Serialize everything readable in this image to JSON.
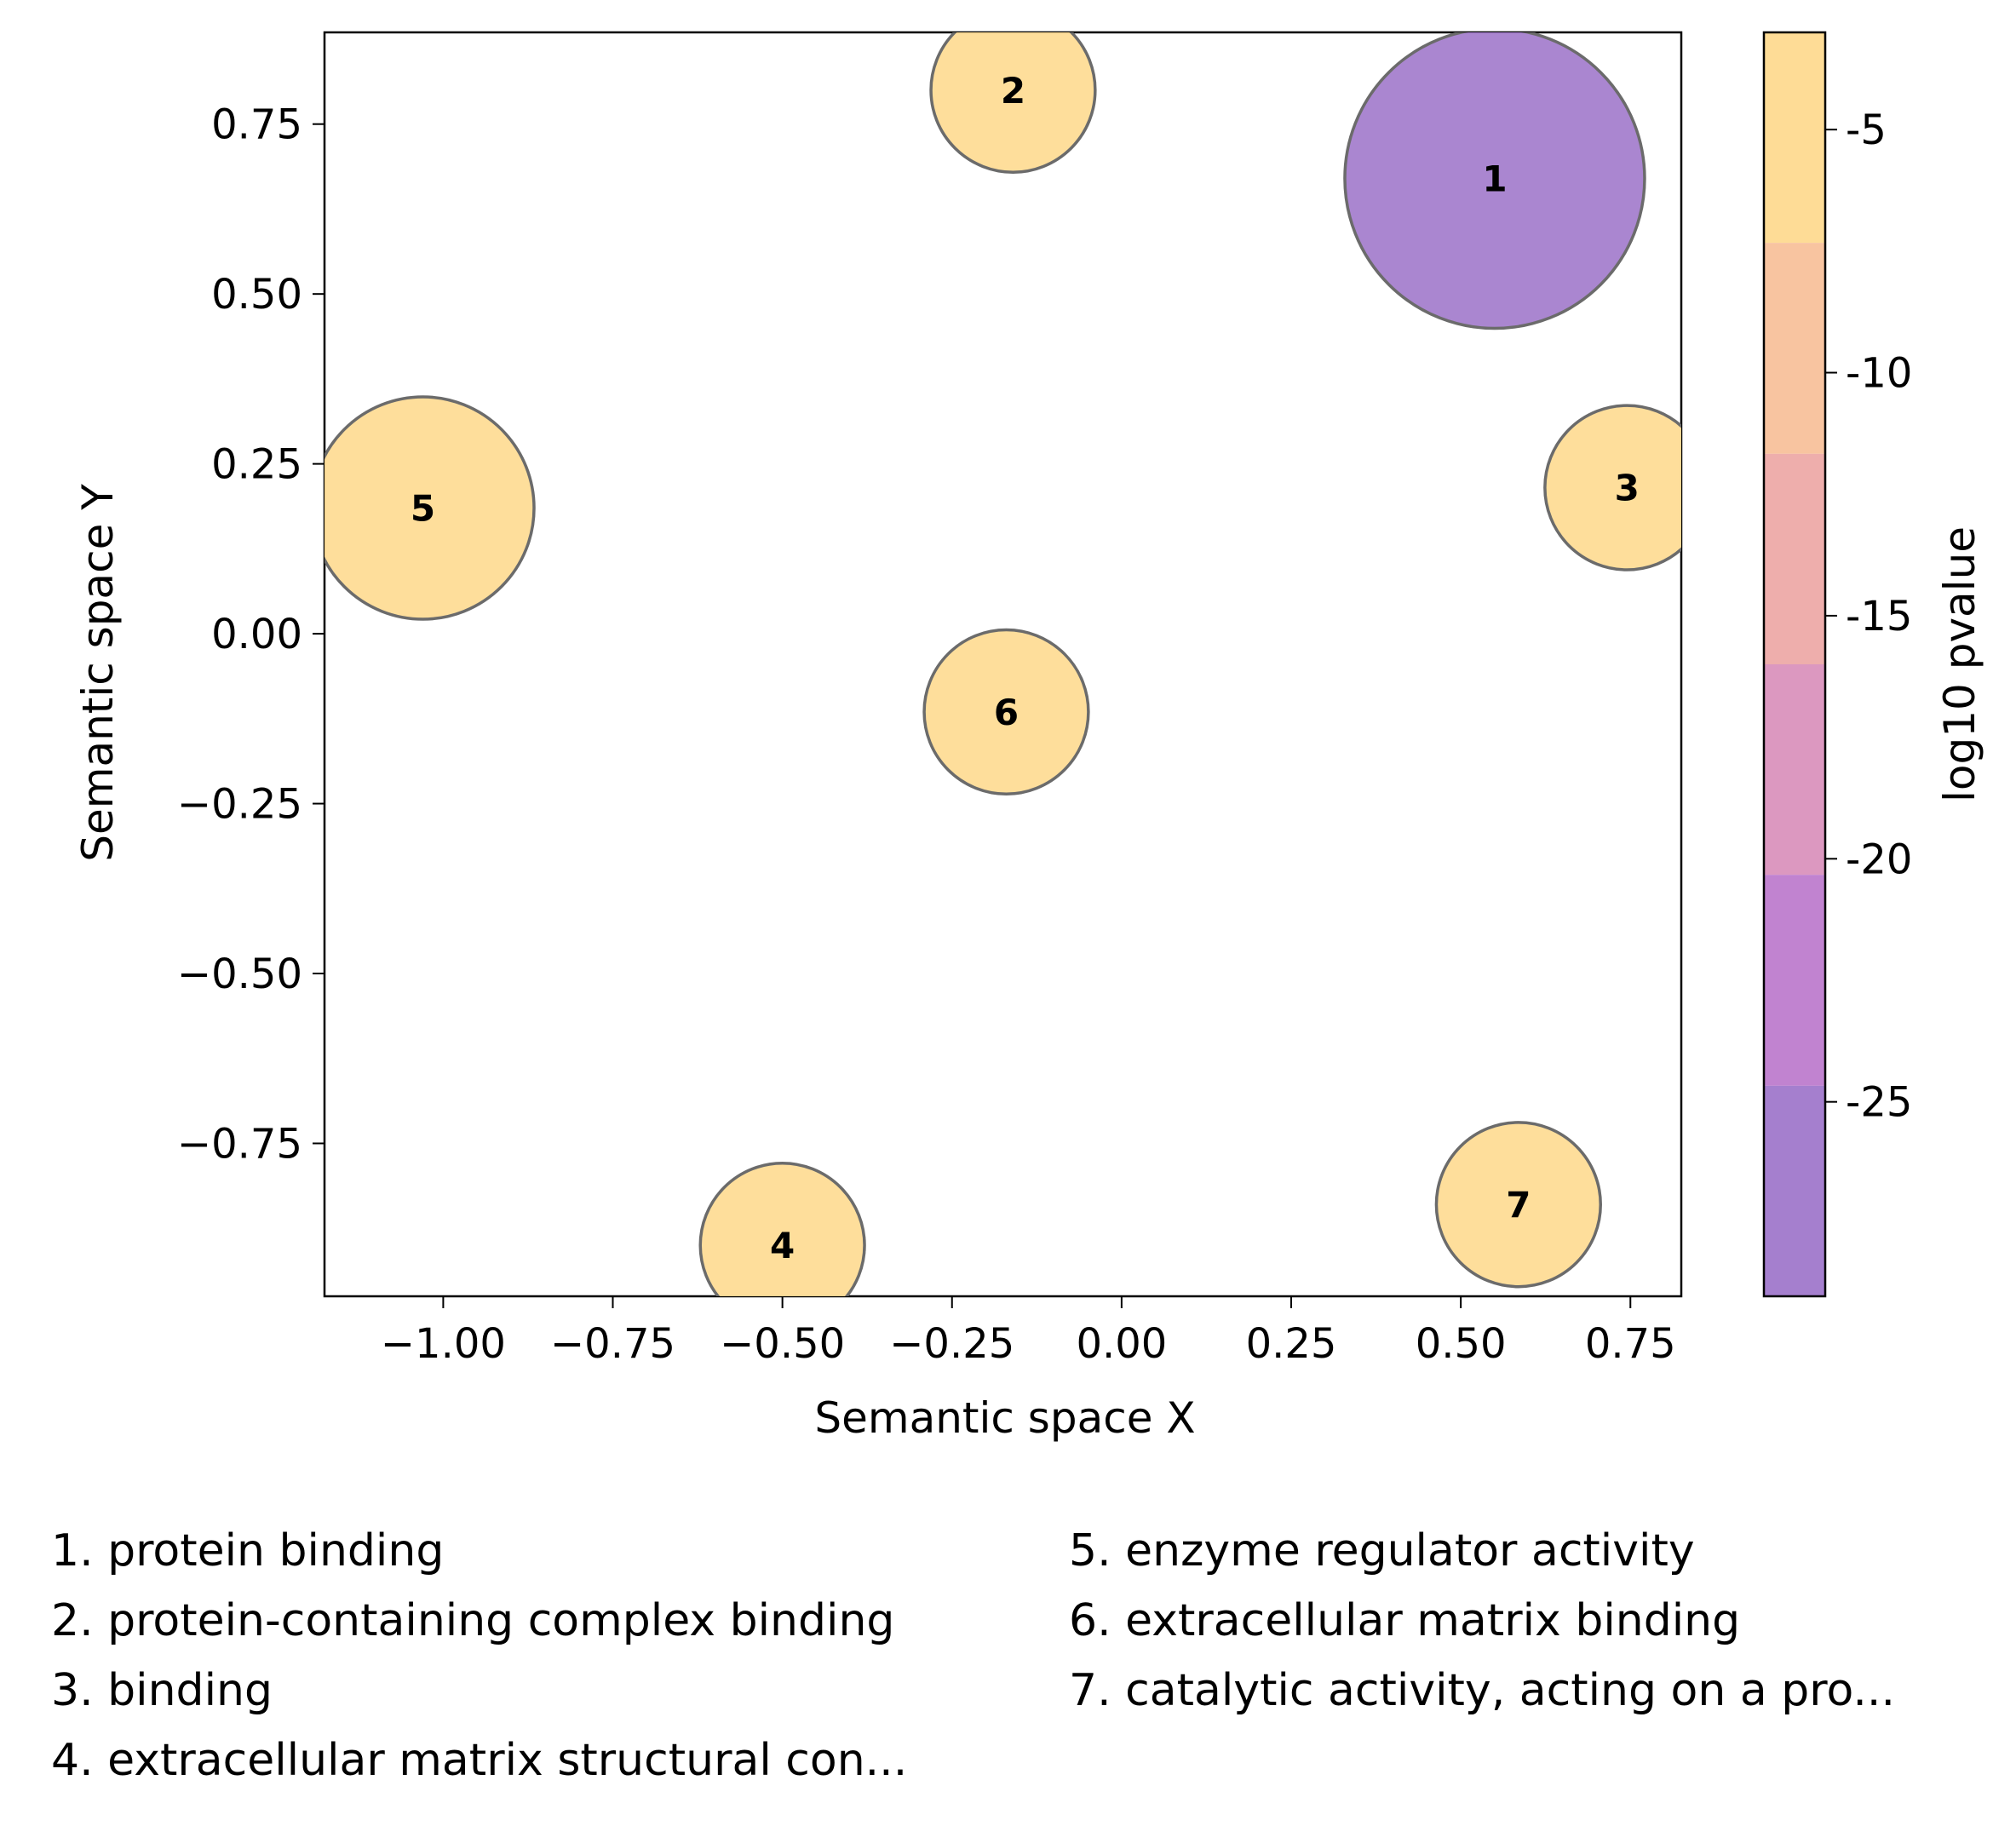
{
  "chart_data": {
    "type": "scatter",
    "title": "",
    "xlabel": "Semantic space X",
    "ylabel": "Semantic space Y",
    "xlim": [
      -1.175,
      0.825
    ],
    "ylim": [
      -0.975,
      0.885
    ],
    "x_ticks": [
      -1.0,
      -0.75,
      -0.5,
      -0.25,
      0.0,
      0.25,
      0.5,
      0.75
    ],
    "x_tick_labels": [
      "−1.00",
      "−0.75",
      "−0.50",
      "−0.25",
      "0.00",
      "0.25",
      "0.50",
      "0.75"
    ],
    "y_ticks": [
      0.75,
      0.5,
      0.25,
      0.0,
      -0.25,
      -0.5,
      -0.75
    ],
    "y_tick_labels": [
      "0.75",
      "0.50",
      "0.25",
      "0.00",
      "−0.25",
      "−0.50",
      "−0.75"
    ],
    "grid": false,
    "points": [
      {
        "id": "1",
        "x": 0.55,
        "y": 0.67,
        "size": 1.0,
        "log10_pvalue": -28.0,
        "color": "#a57fce"
      },
      {
        "id": "2",
        "x": -0.16,
        "y": 0.8,
        "size": 0.3,
        "log10_pvalue": -3.5,
        "color": "#fedc96"
      },
      {
        "id": "3",
        "x": 0.745,
        "y": 0.215,
        "size": 0.3,
        "log10_pvalue": -3.5,
        "color": "#fedc96"
      },
      {
        "id": "4",
        "x": -0.5,
        "y": -0.9,
        "size": 0.3,
        "log10_pvalue": -3.5,
        "color": "#fedc96"
      },
      {
        "id": "5",
        "x": -1.03,
        "y": 0.185,
        "size": 0.55,
        "log10_pvalue": -3.5,
        "color": "#fedc96"
      },
      {
        "id": "6",
        "x": -0.17,
        "y": -0.115,
        "size": 0.3,
        "log10_pvalue": -3.5,
        "color": "#fedc96"
      },
      {
        "id": "7",
        "x": 0.585,
        "y": -0.84,
        "size": 0.3,
        "log10_pvalue": -3.5,
        "color": "#fedc96"
      }
    ],
    "colorbar": {
      "label": "log10 pvalue",
      "range": [
        -29,
        -3
      ],
      "ticks": [
        -5,
        -10,
        -15,
        -20,
        -25
      ],
      "tick_labels": [
        "-5",
        "-10",
        "-15",
        "-20",
        "-25"
      ],
      "bands": [
        {
          "from": -7.33,
          "to": -3,
          "color": "#fedc96"
        },
        {
          "from": -11.67,
          "to": -7.33,
          "color": "#f8c4a0"
        },
        {
          "from": -16.0,
          "to": -11.67,
          "color": "#eeaeac"
        },
        {
          "from": -20.33,
          "to": -16.0,
          "color": "#dc98c0"
        },
        {
          "from": -24.67,
          "to": -20.33,
          "color": "#c183d0"
        },
        {
          "from": -29,
          "to": -24.67,
          "color": "#a57fce"
        }
      ]
    },
    "legend_entries": [
      "1. protein binding",
      "2. protein-containing complex binding",
      "3. binding",
      "4. extracellular matrix structural con...",
      "5. enzyme regulator activity",
      "6. extracellular matrix binding",
      "7. catalytic activity, acting on a pro..."
    ],
    "legend_placement": "bottom"
  }
}
